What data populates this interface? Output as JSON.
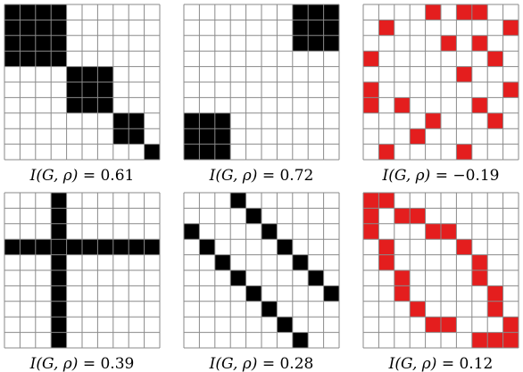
{
  "grid_size": 10,
  "grid_line_color": "#8a8a8a",
  "panels": [
    {
      "fill_color": "#000000",
      "caption": {
        "lhs": "I",
        "args": "(G, ρ)",
        "eq": "=",
        "value": "0.61"
      },
      "cells": [
        "1111000000",
        "1111000000",
        "1111000000",
        "1111000000",
        "0000111000",
        "0000111000",
        "0000111000",
        "0000000110",
        "0000000110",
        "0000000001"
      ]
    },
    {
      "fill_color": "#000000",
      "caption": {
        "lhs": "I",
        "args": "(G, ρ)",
        "eq": "=",
        "value": "0.72"
      },
      "cells": [
        "0000000111",
        "0000000111",
        "0000000111",
        "0000000000",
        "0000000000",
        "0000000000",
        "0000000000",
        "1110000000",
        "1110000000",
        "1110000000"
      ]
    },
    {
      "fill_color": "#e41e1e",
      "caption": {
        "lhs": "I",
        "args": "(G, ρ)",
        "eq": "=",
        "value": "−0.19"
      },
      "cells": [
        "0000101100",
        "0100000001",
        "0000010100",
        "1000000010",
        "0000001000",
        "1000000001",
        "1010000100",
        "0000100010",
        "0001000000",
        "0100001000"
      ]
    },
    {
      "fill_color": "#000000",
      "caption": {
        "lhs": "I",
        "args": "(G, ρ)",
        "eq": "=",
        "value": "0.39"
      },
      "cells": [
        "0001000000",
        "0001000000",
        "0001000000",
        "1111111111",
        "0001000000",
        "0001000000",
        "0001000000",
        "0001000000",
        "0001000000",
        "0001000000"
      ]
    },
    {
      "fill_color": "#000000",
      "caption": {
        "lhs": "I",
        "args": "(G, ρ)",
        "eq": "=",
        "value": "0.28"
      },
      "cells": [
        "0001000000",
        "0000100000",
        "1000010000",
        "0100001000",
        "0010000100",
        "0001000010",
        "0000100001",
        "0000010000",
        "0000001000",
        "0000000100"
      ]
    },
    {
      "fill_color": "#e41e1e",
      "caption": {
        "lhs": "I",
        "args": "(G, ρ)",
        "eq": "=",
        "value": "0.12"
      },
      "cells": [
        "1100000000",
        "1011000000",
        "1000110000",
        "0100001000",
        "0100000100",
        "0010000100",
        "0010000010",
        "0001000010",
        "0000110001",
        "0000000111"
      ]
    }
  ]
}
